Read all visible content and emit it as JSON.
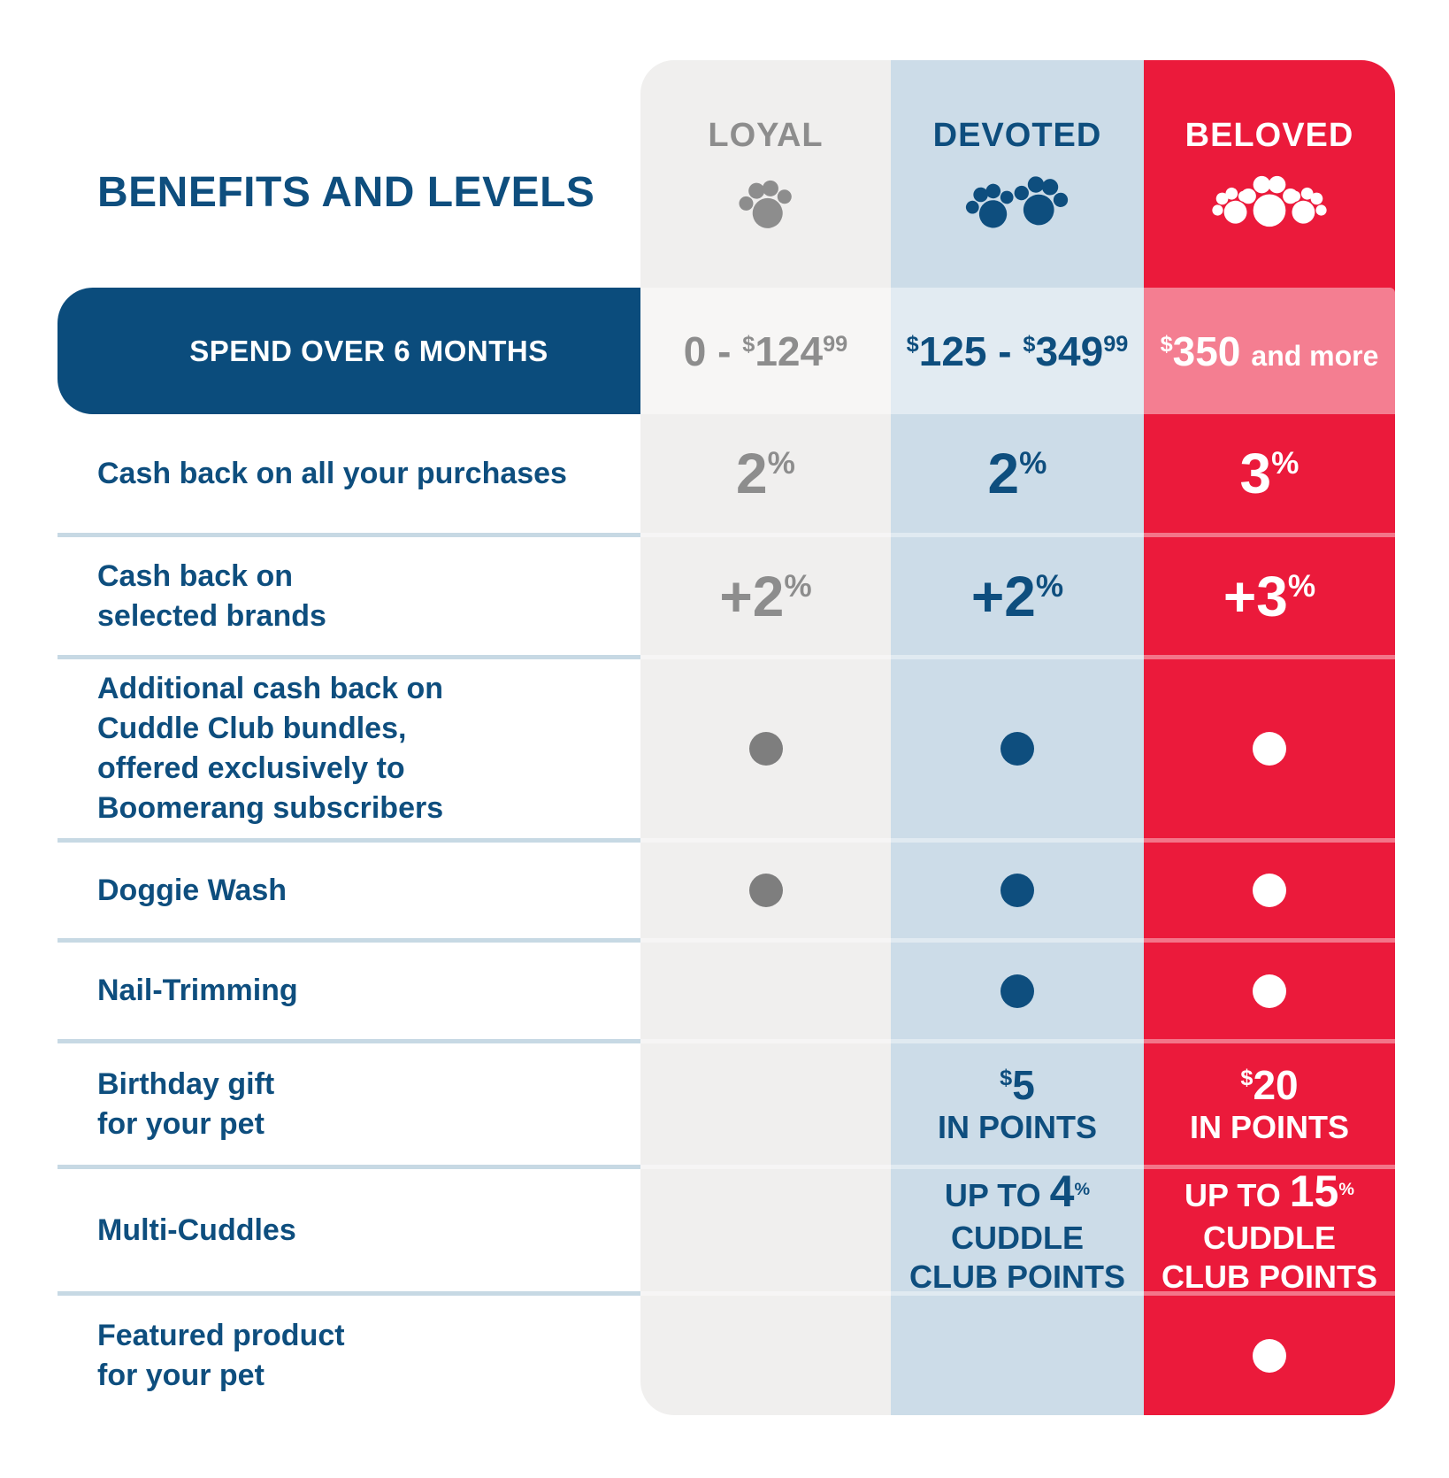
{
  "page": {
    "title": "BENEFITS AND LEVELS"
  },
  "colors": {
    "navy_text": "#0e4e7e",
    "navy_bar": "#0b4c7c",
    "gray_text": "#8d8d8d",
    "col_gray_bg": "#f0efee",
    "col_blue_bg": "#ccdce8",
    "col_red_bg": "#eb1a3b",
    "separator": "#c7d9e4",
    "white": "#ffffff"
  },
  "tiers": [
    {
      "id": "loyal",
      "label": "LOYAL",
      "paws": 1
    },
    {
      "id": "devoted",
      "label": "DEVOTED",
      "paws": 2
    },
    {
      "id": "beloved",
      "label": "BELOVED",
      "paws": 3
    }
  ],
  "spend": {
    "label": "SPEND OVER 6 MONTHS",
    "loyal": {
      "pre": "0 - ",
      "sym": "$",
      "num": "124",
      "cents": "99"
    },
    "devoted": {
      "sym1": "$",
      "num1": "125",
      "dash": " - ",
      "sym2": "$",
      "num2": "349",
      "cents": "99"
    },
    "beloved": {
      "sym": "$",
      "num": "350",
      "suffix": "and more"
    }
  },
  "rows": [
    {
      "label": "Cash back on all your purchases",
      "cells": [
        {
          "type": "percent",
          "value": "2"
        },
        {
          "type": "percent",
          "value": "2"
        },
        {
          "type": "percent",
          "value": "3"
        }
      ]
    },
    {
      "label": "Cash back on\nselected brands",
      "cells": [
        {
          "type": "percent",
          "value": "+2"
        },
        {
          "type": "percent",
          "value": "+2"
        },
        {
          "type": "percent",
          "value": "+3"
        }
      ]
    },
    {
      "label": "Additional cash back on\nCuddle Club bundles,\noffered exclusively to\nBoomerang subscribers",
      "cells": [
        {
          "type": "dot"
        },
        {
          "type": "dot"
        },
        {
          "type": "dot"
        }
      ]
    },
    {
      "label": "Doggie Wash",
      "cells": [
        {
          "type": "dot"
        },
        {
          "type": "dot"
        },
        {
          "type": "dot"
        }
      ]
    },
    {
      "label": "Nail-Trimming",
      "cells": [
        null,
        {
          "type": "dot"
        },
        {
          "type": "dot"
        }
      ]
    },
    {
      "label": "Birthday gift\nfor your pet",
      "cells": [
        null,
        {
          "type": "points",
          "sym": "$",
          "amount": "5",
          "caption": "IN POINTS"
        },
        {
          "type": "points",
          "sym": "$",
          "amount": "20",
          "caption": "IN POINTS"
        }
      ]
    },
    {
      "label": "Multi-Cuddles",
      "cells": [
        null,
        {
          "type": "upto",
          "prefix": "UP TO",
          "value": "4",
          "pct": "%",
          "lines": [
            "CUDDLE",
            "CLUB POINTS"
          ]
        },
        {
          "type": "upto",
          "prefix": "UP TO",
          "value": "15",
          "pct": "%",
          "lines": [
            "CUDDLE",
            "CLUB POINTS"
          ]
        }
      ]
    },
    {
      "label": "Featured product\nfor your pet",
      "cells": [
        null,
        null,
        {
          "type": "dot"
        }
      ]
    }
  ],
  "chart_data": {
    "type": "table",
    "title": "BENEFITS AND LEVELS",
    "columns": [
      "LOYAL",
      "DEVOTED",
      "BELOVED"
    ],
    "spend_over_6_months": [
      "0 - $124.99",
      "$125 - $349.99",
      "$350 and more"
    ],
    "rows": [
      {
        "label": "Cash back on all your purchases",
        "values": [
          "2%",
          "2%",
          "3%"
        ]
      },
      {
        "label": "Cash back on selected brands",
        "values": [
          "+2%",
          "+2%",
          "+3%"
        ]
      },
      {
        "label": "Additional cash back on Cuddle Club bundles, offered exclusively to Boomerang subscribers",
        "values": [
          "included",
          "included",
          "included"
        ]
      },
      {
        "label": "Doggie Wash",
        "values": [
          "included",
          "included",
          "included"
        ]
      },
      {
        "label": "Nail-Trimming",
        "values": [
          "",
          "included",
          "included"
        ]
      },
      {
        "label": "Birthday gift for your pet",
        "values": [
          "",
          "$5 IN POINTS",
          "$20 IN POINTS"
        ]
      },
      {
        "label": "Multi-Cuddles",
        "values": [
          "",
          "UP TO 4% CUDDLE CLUB POINTS",
          "UP TO 15% CUDDLE CLUB POINTS"
        ]
      },
      {
        "label": "Featured product for your pet",
        "values": [
          "",
          "",
          "included"
        ]
      }
    ]
  }
}
